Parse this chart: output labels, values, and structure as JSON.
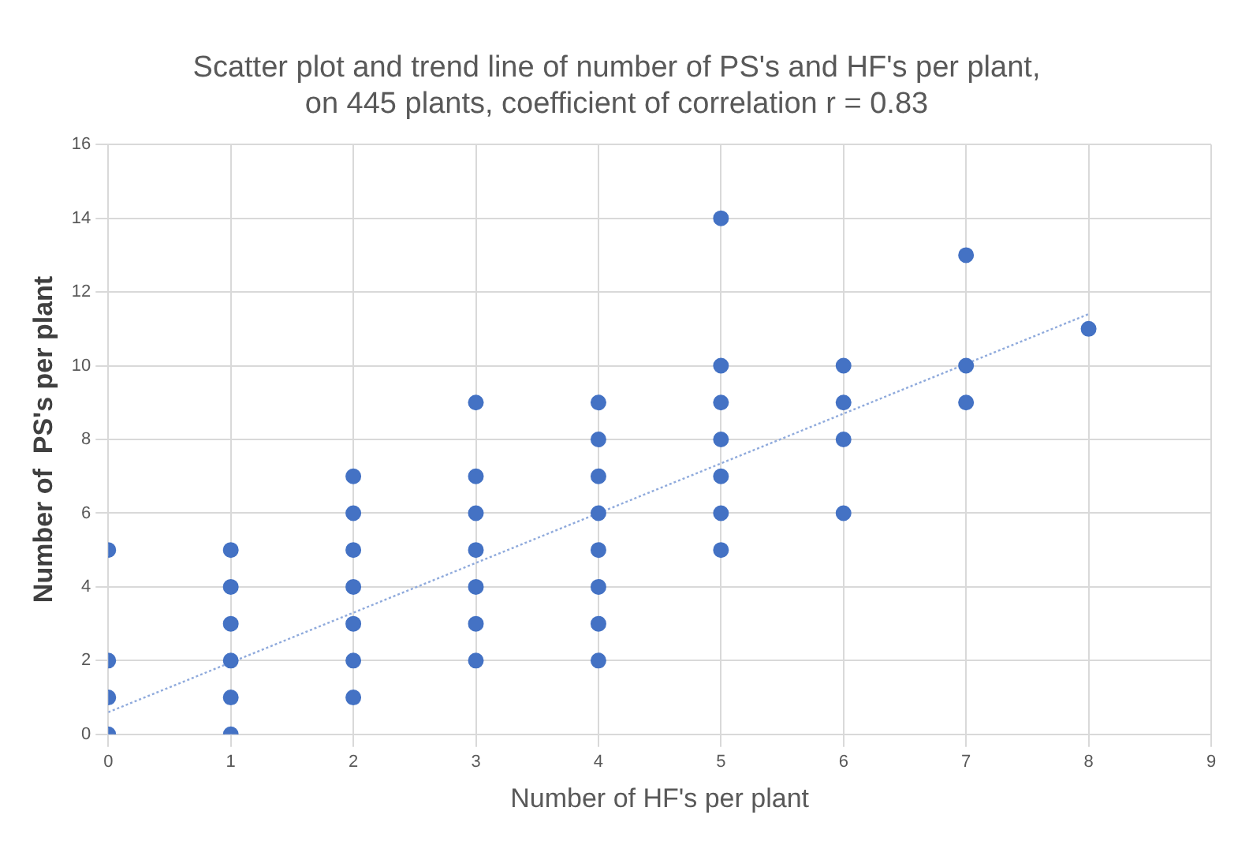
{
  "chart_data": {
    "type": "scatter",
    "title": "Scatter plot and trend line of number of PS's and HF's per plant,\non 445 plants, coefficient of correlation r = 0.83",
    "xlabel": "Number of HF's per plant",
    "ylabel": "Number of  PS's per plant",
    "xlim": [
      0,
      9
    ],
    "xticks": [
      0,
      1,
      2,
      3,
      4,
      5,
      6,
      7,
      8,
      9
    ],
    "ylim": [
      0,
      16
    ],
    "yticks": [
      0,
      2,
      4,
      6,
      8,
      10,
      12,
      14,
      16
    ],
    "grid": true,
    "series": [
      {
        "marker": "circle",
        "color": "#4472c4",
        "x": [
          0,
          0,
          0,
          0,
          1,
          1,
          1,
          1,
          1,
          1,
          2,
          2,
          2,
          2,
          2,
          2,
          2,
          3,
          3,
          3,
          3,
          3,
          3,
          3,
          4,
          4,
          4,
          4,
          4,
          4,
          4,
          4,
          5,
          5,
          5,
          5,
          5,
          5,
          5,
          6,
          6,
          6,
          6,
          7,
          7,
          7,
          8
        ],
        "values": [
          0,
          1,
          2,
          5,
          0,
          1,
          2,
          3,
          4,
          5,
          1,
          2,
          3,
          4,
          5,
          6,
          7,
          2,
          3,
          4,
          5,
          6,
          7,
          9,
          2,
          3,
          4,
          5,
          6,
          7,
          8,
          9,
          5,
          6,
          7,
          8,
          9,
          10,
          14,
          6,
          8,
          9,
          10,
          9,
          10,
          13,
          11
        ]
      },
      {
        "type": "line",
        "color": "#8faadc",
        "line_style": "dotted",
        "x": [
          0,
          8
        ],
        "values": [
          0.6,
          11.4
        ]
      }
    ]
  }
}
